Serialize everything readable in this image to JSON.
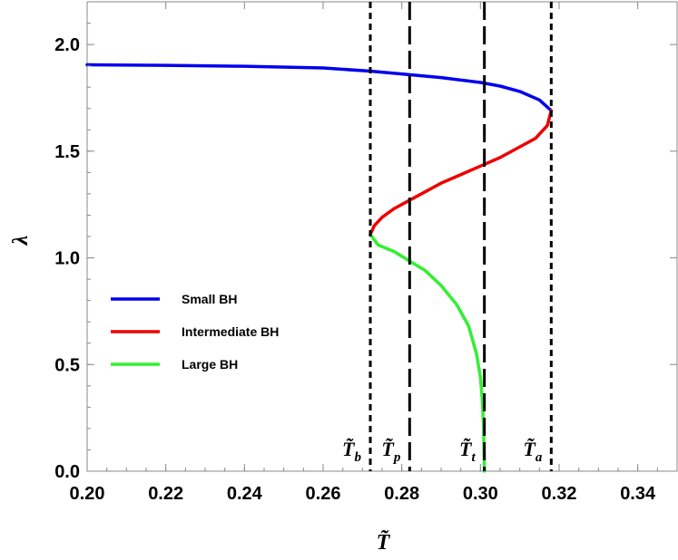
{
  "chart_data": {
    "type": "line",
    "title": "",
    "xlabel": "T̃",
    "ylabel": "λ",
    "xlim": [
      0.2,
      0.35
    ],
    "ylim": [
      0.0,
      2.2
    ],
    "xticks": [
      "0.20",
      "0.22",
      "0.24",
      "0.26",
      "0.28",
      "0.30",
      "0.32",
      "0.34"
    ],
    "yticks": [
      "0.0",
      "0.5",
      "1.0",
      "1.5",
      "2.0"
    ],
    "grid": false,
    "legend_position": "left-center",
    "series": [
      {
        "name": "Small BH",
        "color": "#0000ee",
        "points": [
          [
            0.2,
            1.905
          ],
          [
            0.22,
            1.902
          ],
          [
            0.24,
            1.898
          ],
          [
            0.26,
            1.89
          ],
          [
            0.272,
            1.875
          ],
          [
            0.28,
            1.862
          ],
          [
            0.29,
            1.845
          ],
          [
            0.3,
            1.822
          ],
          [
            0.305,
            1.805
          ],
          [
            0.31,
            1.78
          ],
          [
            0.315,
            1.74
          ],
          [
            0.318,
            1.69
          ]
        ]
      },
      {
        "name": "Intermediate BH",
        "color": "#ee0000",
        "points": [
          [
            0.318,
            1.69
          ],
          [
            0.317,
            1.62
          ],
          [
            0.314,
            1.56
          ],
          [
            0.31,
            1.52
          ],
          [
            0.305,
            1.47
          ],
          [
            0.3,
            1.43
          ],
          [
            0.295,
            1.39
          ],
          [
            0.29,
            1.35
          ],
          [
            0.286,
            1.31
          ],
          [
            0.282,
            1.27
          ],
          [
            0.278,
            1.23
          ],
          [
            0.275,
            1.19
          ],
          [
            0.273,
            1.15
          ],
          [
            0.272,
            1.11
          ]
        ]
      },
      {
        "name": "Large BH",
        "color": "#33ee33",
        "points": [
          [
            0.272,
            1.11
          ],
          [
            0.274,
            1.06
          ],
          [
            0.278,
            1.03
          ],
          [
            0.282,
            0.985
          ],
          [
            0.286,
            0.94
          ],
          [
            0.29,
            0.87
          ],
          [
            0.294,
            0.78
          ],
          [
            0.297,
            0.68
          ],
          [
            0.299,
            0.55
          ],
          [
            0.3,
            0.44
          ],
          [
            0.3005,
            0.33
          ],
          [
            0.3008,
            0.2
          ],
          [
            0.301,
            0.0
          ]
        ]
      }
    ],
    "vertical_lines": [
      {
        "label": "T̃",
        "subscript": "b",
        "x": 0.272,
        "style": "short-dash"
      },
      {
        "label": "T̃",
        "subscript": "p",
        "x": 0.282,
        "style": "long-dash"
      },
      {
        "label": "T̃",
        "subscript": "t",
        "x": 0.301,
        "style": "long-dash"
      },
      {
        "label": "T̃",
        "subscript": "a",
        "x": 0.318,
        "style": "short-dash"
      }
    ]
  }
}
